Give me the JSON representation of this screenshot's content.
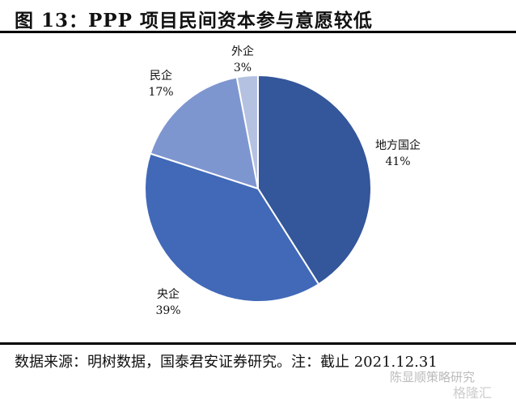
{
  "title": "图 13：PPP 项目民间资本参与意愿较低",
  "source": "数据来源：明树数据，国泰君安证券研究。注：截止 2021.12.31",
  "watermark": {
    "account": "陈显顺策略研究",
    "brand": "格隆汇"
  },
  "chart_data": {
    "type": "pie",
    "title": "PPP 项目民间资本参与意愿较低",
    "categories": [
      "地方国企",
      "央企",
      "民企",
      "外企"
    ],
    "values": [
      41,
      39,
      17,
      3
    ],
    "value_labels": [
      "41%",
      "39%",
      "17%",
      "3%"
    ],
    "colors": [
      "#34569a",
      "#4169b8",
      "#7e96d0",
      "#b5c1e1"
    ],
    "start": "12 o'clock, clockwise"
  }
}
